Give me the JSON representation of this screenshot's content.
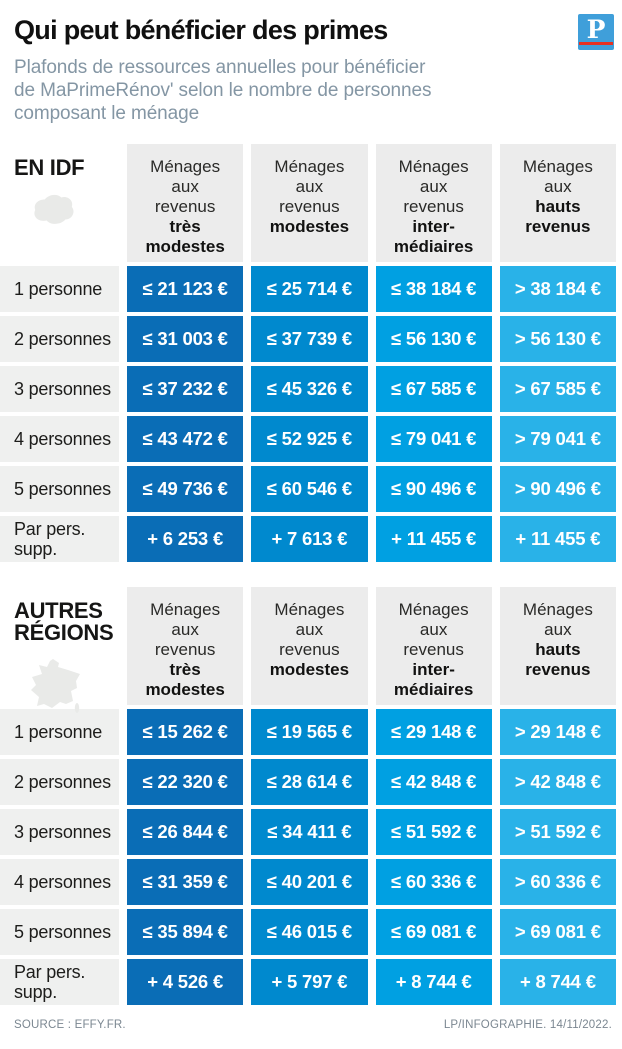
{
  "header": {
    "title": "Qui peut bénéficier des primes",
    "subtitle": "Plafonds de ressources annuelles pour bénéficier\nde MaPrimeRénov' selon le nombre de personnes\ncomposant le ménage",
    "logo_letter": "P",
    "logo_color": "#3f9fda",
    "logo_bar_color": "#e63122"
  },
  "columns": [
    {
      "top": "Ménages\naux\nrevenus",
      "bold": "très\nmodestes",
      "color": "#0a6db6"
    },
    {
      "top": "Ménages\naux\nrevenus",
      "bold": "modestes",
      "color": "#0089ce"
    },
    {
      "top": "Ménages\naux\nrevenus",
      "bold": "inter-\nmédiaires",
      "color": "#00a0e2"
    },
    {
      "top": "Ménages\naux",
      "bold": "hauts\nrevenus",
      "color": "#29b2e8"
    }
  ],
  "tables": [
    {
      "region": "EN IDF",
      "icon": "idf-map-icon",
      "rows": [
        {
          "label": "1 personne",
          "values": [
            "≤ 21 123 €",
            "≤ 25 714 €",
            "≤ 38 184 €",
            "> 38 184 €"
          ]
        },
        {
          "label": "2 personnes",
          "values": [
            "≤ 31 003 €",
            "≤ 37 739 €",
            "≤ 56 130 €",
            "> 56 130 €"
          ]
        },
        {
          "label": "3 personnes",
          "values": [
            "≤ 37 232 €",
            "≤ 45 326 €",
            "≤ 67 585 €",
            "> 67 585 €"
          ]
        },
        {
          "label": "4 personnes",
          "values": [
            "≤ 43 472 €",
            "≤ 52 925 €",
            "≤ 79 041 €",
            "> 79 041 €"
          ]
        },
        {
          "label": "5 personnes",
          "values": [
            "≤ 49 736 €",
            "≤ 60 546 €",
            "≤ 90 496 €",
            "> 90 496 €"
          ]
        },
        {
          "label": "Par pers. supp.",
          "values": [
            "+ 6 253 €",
            "+ 7 613 €",
            "+ 11 455 €",
            "+ 11 455 €"
          ]
        }
      ]
    },
    {
      "region": "AUTRES\nRÉGIONS",
      "icon": "france-map-icon",
      "rows": [
        {
          "label": "1 personne",
          "values": [
            "≤ 15 262 €",
            "≤ 19 565 €",
            "≤ 29 148 €",
            "> 29 148 €"
          ]
        },
        {
          "label": "2 personnes",
          "values": [
            "≤ 22 320 €",
            "≤ 28 614 €",
            "≤ 42 848 €",
            "> 42 848 €"
          ]
        },
        {
          "label": "3 personnes",
          "values": [
            "≤ 26 844 €",
            "≤ 34 411 €",
            "≤ 51 592 €",
            "> 51 592 €"
          ]
        },
        {
          "label": "4 personnes",
          "values": [
            "≤ 31 359 €",
            "≤ 40 201 €",
            "≤ 60 336 €",
            "> 60 336 €"
          ]
        },
        {
          "label": "5 personnes",
          "values": [
            "≤ 35 894 €",
            "≤ 46 015 €",
            "≤ 69 081 €",
            "> 69 081 €"
          ]
        },
        {
          "label": "Par pers. supp.",
          "values": [
            "+ 4 526 €",
            "+ 5 797 €",
            "+ 8 744 €",
            "+ 8 744 €"
          ]
        }
      ]
    }
  ],
  "footer": {
    "source": "SOURCE : EFFY.FR.",
    "credit": "LP/INFOGRAPHIE. 14/11/2022."
  }
}
